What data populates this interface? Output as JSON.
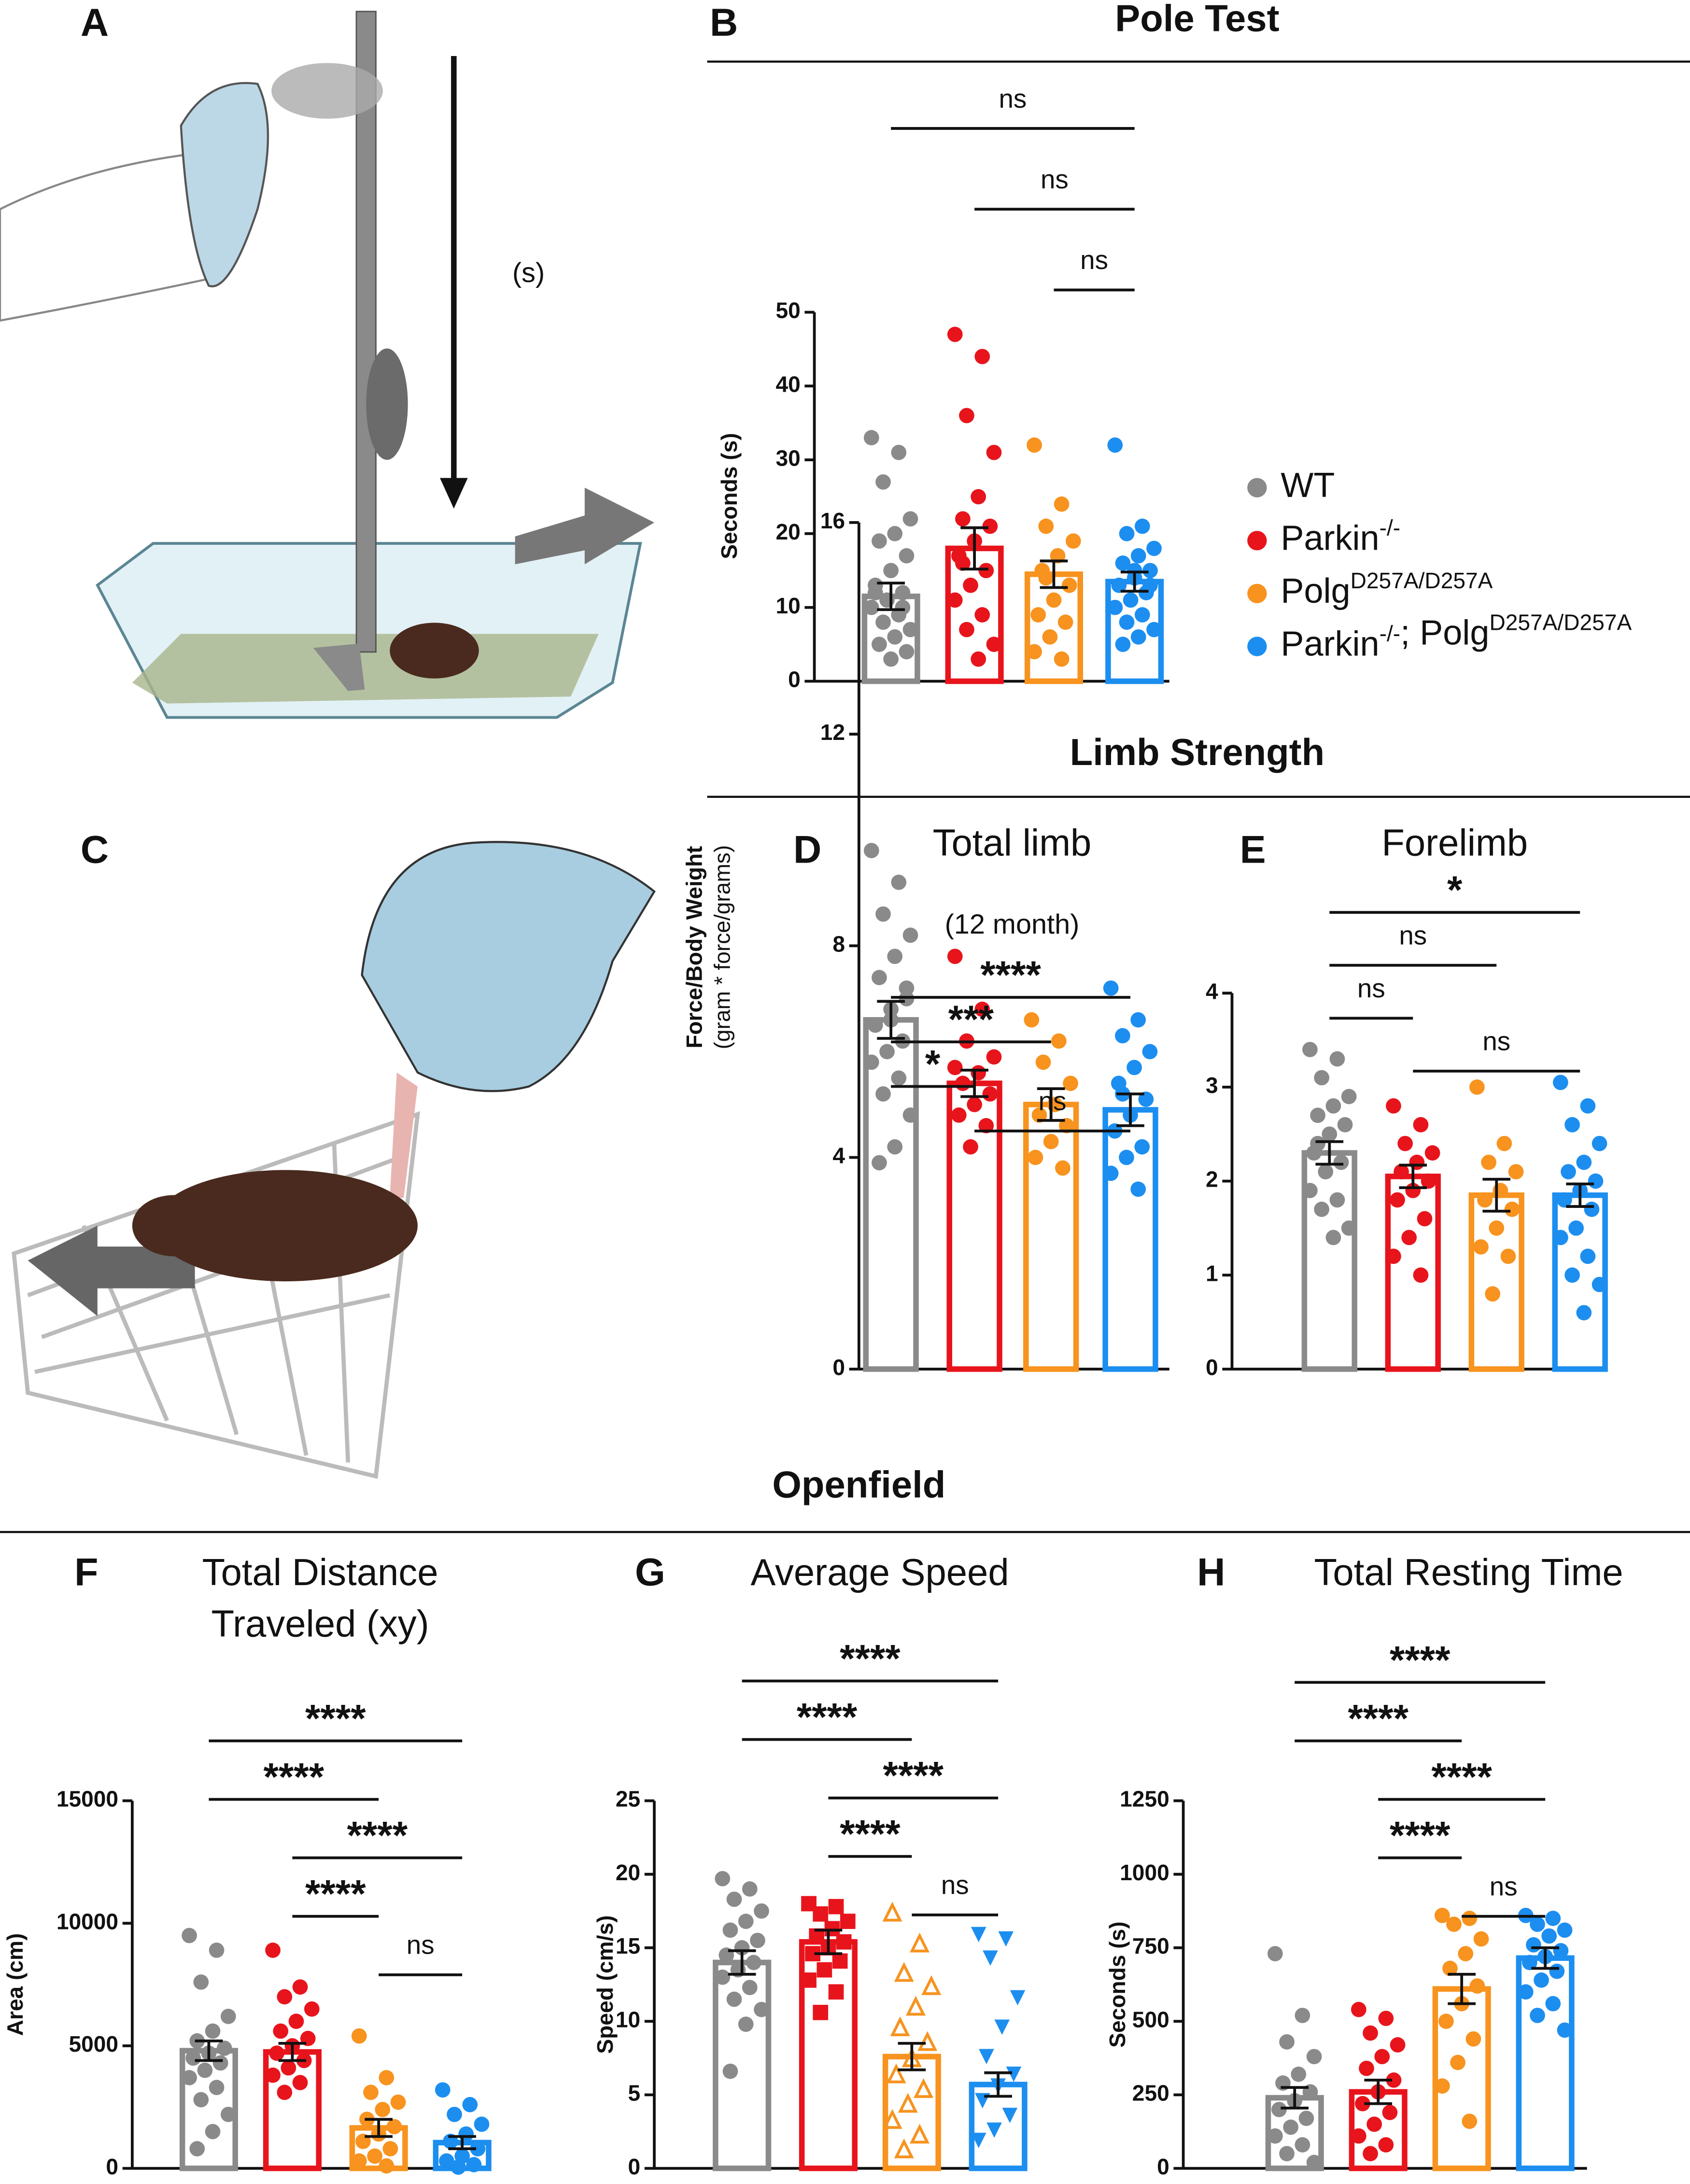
{
  "illustration_a": {
    "letter": "A",
    "label": "(s)"
  },
  "illustration_c": {
    "letter": "C"
  },
  "sections": [
    "Pole Test",
    "Limb Strength",
    "Openfield"
  ],
  "legend": [
    {
      "color": "#8a8a8a",
      "parts": [
        {
          "text": "WT"
        }
      ]
    },
    {
      "color": "#e8141c",
      "parts": [
        {
          "text": "Parkin"
        },
        {
          "sup": "-/-"
        }
      ]
    },
    {
      "color": "#f7931e",
      "parts": [
        {
          "text": "Polg"
        },
        {
          "sup": "D257A/D257A"
        }
      ]
    },
    {
      "color": "#1c8ef0",
      "parts": [
        {
          "text": "Parkin"
        },
        {
          "sup": "-/-"
        },
        {
          "text": "; Polg"
        },
        {
          "sup": "D257A/D257A"
        }
      ]
    }
  ],
  "chart_data": [
    {
      "type": "bar",
      "letter": "B",
      "ylabel": [
        "Seconds (s)"
      ],
      "categories": [
        null,
        null,
        null,
        null
      ],
      "colors": [
        "#8a8a8a",
        "#e8141c",
        "#f7931e",
        "#1c8ef0"
      ],
      "markers": [
        "circle",
        "circle",
        "circle",
        "circle"
      ],
      "values": [
        11.5,
        18,
        14.5,
        13.5
      ],
      "errors": [
        1.8,
        2.8,
        1.8,
        1.3
      ],
      "points": [
        [
          33,
          31,
          27,
          22,
          20,
          19,
          17,
          15,
          13,
          12,
          11,
          10,
          9,
          8,
          7,
          6,
          5,
          4,
          3,
          12,
          10
        ],
        [
          47,
          44,
          36,
          31,
          25,
          22,
          21,
          19,
          17,
          15,
          13,
          11,
          9,
          7,
          5,
          3,
          16
        ],
        [
          32,
          24,
          21,
          19,
          17,
          15,
          13,
          11,
          9,
          8,
          6,
          4,
          3,
          14
        ],
        [
          32,
          21,
          20,
          18,
          17,
          16,
          15,
          14,
          13,
          12,
          11,
          10,
          9,
          8,
          7,
          6,
          5,
          13,
          15
        ]
      ],
      "ylim": [
        0,
        50
      ],
      "yticks": [
        0,
        10,
        20,
        30,
        40,
        50
      ],
      "comparisons": [
        {
          "from": 0,
          "to": 3,
          "label": "ns"
        },
        {
          "from": 1,
          "to": 3,
          "label": "ns"
        },
        {
          "from": 2,
          "to": 3,
          "label": "ns"
        }
      ]
    },
    {
      "type": "bar",
      "letter": "D",
      "title": [
        "Total limb"
      ],
      "subtitle": "(12 month)",
      "ylabel": [
        "Force/Body Weight",
        "(gram * force/grams)"
      ],
      "categories": [
        null,
        null,
        null,
        null
      ],
      "colors": [
        "#8a8a8a",
        "#e8141c",
        "#f7931e",
        "#1c8ef0"
      ],
      "markers": [
        "circle",
        "circle",
        "circle",
        "circle"
      ],
      "values": [
        6.6,
        5.4,
        5.0,
        4.9
      ],
      "errors": [
        0.35,
        0.25,
        0.3,
        0.3
      ],
      "points": [
        [
          9.8,
          9.2,
          8.6,
          8.2,
          7.8,
          7.4,
          7,
          6.8,
          6.5,
          6.2,
          6,
          5.8,
          5.5,
          5.2,
          4.8,
          4.2,
          3.9,
          7.2,
          6.6
        ],
        [
          7.8,
          6.8,
          6.2,
          5.9,
          5.6,
          5.4,
          5.2,
          5,
          4.8,
          4.6,
          4.2,
          5.7
        ],
        [
          6.6,
          6.2,
          5.8,
          5.4,
          5,
          4.8,
          4.6,
          4.3,
          4,
          3.8
        ],
        [
          7.2,
          6.6,
          6.3,
          6,
          5.7,
          5.4,
          5.1,
          4.8,
          4.5,
          4.2,
          4,
          3.7,
          3.4,
          5.2
        ]
      ],
      "ylim": [
        0,
        16
      ],
      "yticks": [
        0,
        4,
        8,
        12,
        16
      ],
      "comparisons": [
        {
          "from": 0,
          "to": 3,
          "label": "****"
        },
        {
          "from": 0,
          "to": 2,
          "label": "***"
        },
        {
          "from": 0,
          "to": 1,
          "label": "*"
        },
        {
          "from": 1,
          "to": 3,
          "label": "ns"
        }
      ]
    },
    {
      "type": "bar",
      "letter": "E",
      "title": [
        "Forelimb"
      ],
      "categories": [
        null,
        null,
        null,
        null
      ],
      "colors": [
        "#8a8a8a",
        "#e8141c",
        "#f7931e",
        "#1c8ef0"
      ],
      "markers": [
        "circle",
        "circle",
        "circle",
        "circle"
      ],
      "values": [
        2.3,
        2.05,
        1.85,
        1.85
      ],
      "errors": [
        0.12,
        0.12,
        0.17,
        0.12
      ],
      "points": [
        [
          3.4,
          3.3,
          3.1,
          2.9,
          2.8,
          2.7,
          2.6,
          2.5,
          2.3,
          2.2,
          2.1,
          1.9,
          1.8,
          1.7,
          1.5,
          1.4,
          2.4
        ],
        [
          2.8,
          2.6,
          2.4,
          2.3,
          2.2,
          2.1,
          2,
          1.9,
          1.8,
          1.6,
          1.4,
          1.2,
          1
        ],
        [
          3,
          2.4,
          2.2,
          2.1,
          1.9,
          1.8,
          1.7,
          1.5,
          1.3,
          1.2,
          0.8
        ],
        [
          3.05,
          2.8,
          2.6,
          2.4,
          2.2,
          2.1,
          2,
          1.9,
          1.8,
          1.7,
          1.5,
          1.4,
          1.2,
          1,
          0.9,
          0.6
        ]
      ],
      "ylim": [
        0,
        4
      ],
      "yticks": [
        0,
        1,
        2,
        3,
        4
      ],
      "comparisons": [
        {
          "from": 0,
          "to": 3,
          "label": "*"
        },
        {
          "from": 0,
          "to": 2,
          "label": "ns"
        },
        {
          "from": 0,
          "to": 1,
          "label": "ns"
        },
        {
          "from": 1,
          "to": 3,
          "label": "ns"
        }
      ]
    },
    {
      "type": "bar",
      "letter": "F",
      "title": [
        "Total Distance",
        "Traveled (xy)"
      ],
      "ylabel": [
        "Area (cm)"
      ],
      "categories": [
        null,
        null,
        null,
        null
      ],
      "colors": [
        "#8a8a8a",
        "#e8141c",
        "#f7931e",
        "#1c8ef0"
      ],
      "markers": [
        "circle",
        "circle",
        "circle",
        "circle"
      ],
      "values": [
        4800,
        4750,
        1650,
        1050
      ],
      "errors": [
        400,
        350,
        350,
        250
      ],
      "points": [
        [
          9500,
          8900,
          7600,
          6200,
          5600,
          5200,
          4900,
          4700,
          4500,
          4300,
          4000,
          3700,
          3300,
          2800,
          2200,
          1500,
          800
        ],
        [
          8900,
          7400,
          7000,
          6500,
          6000,
          5600,
          5300,
          5000,
          4700,
          4400,
          4100,
          3800,
          3500,
          3100
        ],
        [
          5400,
          3700,
          3100,
          2700,
          2400,
          2000,
          1700,
          1400,
          1100,
          800,
          500,
          300,
          100
        ],
        [
          3200,
          2600,
          2200,
          1800,
          1400,
          1100,
          800,
          500,
          300,
          150,
          50
        ]
      ],
      "ylim": [
        0,
        15000
      ],
      "yticks": [
        0,
        5000,
        10000,
        15000
      ],
      "comparisons": [
        {
          "from": 0,
          "to": 3,
          "label": "****"
        },
        {
          "from": 0,
          "to": 2,
          "label": "****"
        },
        {
          "from": 1,
          "to": 3,
          "label": "****"
        },
        {
          "from": 1,
          "to": 2,
          "label": "****"
        },
        {
          "from": 2,
          "to": 3,
          "label": "ns"
        }
      ]
    },
    {
      "type": "bar",
      "letter": "G",
      "title": [
        "Average Speed"
      ],
      "ylabel": [
        "Speed (cm/s)"
      ],
      "categories": [
        null,
        null,
        null,
        null
      ],
      "colors": [
        "#8a8a8a",
        "#e8141c",
        "#f7931e",
        "#1c8ef0"
      ],
      "markers": [
        "circle",
        "square",
        "triangle",
        "triangle-down"
      ],
      "values": [
        14,
        15.4,
        7.6,
        5.7
      ],
      "errors": [
        0.8,
        0.8,
        0.9,
        0.8
      ],
      "points": [
        [
          19.7,
          19,
          18.3,
          17.5,
          16.8,
          16.2,
          15.5,
          15,
          14.5,
          14,
          13.5,
          13,
          12.3,
          11.5,
          10.8,
          9.8,
          6.6
        ],
        [
          18,
          17.8,
          17.3,
          16.8,
          16.3,
          15.8,
          15.4,
          15,
          14.6,
          14.1,
          13.5,
          12.8,
          12,
          10.6
        ],
        [
          17.4,
          15.3,
          13.3,
          12.4,
          11,
          9.6,
          8.6,
          7.5,
          6.4,
          5.4,
          4.4,
          3.3,
          2.3,
          1.3
        ],
        [
          15.9,
          15.6,
          14.3,
          11.6,
          9.6,
          7.6,
          6.4,
          5.6,
          4.6,
          3.6,
          2.6,
          1.9
        ]
      ],
      "ylim": [
        0,
        25
      ],
      "yticks": [
        0,
        5,
        10,
        15,
        20,
        25
      ],
      "comparisons": [
        {
          "from": 0,
          "to": 3,
          "label": "****"
        },
        {
          "from": 0,
          "to": 2,
          "label": "****"
        },
        {
          "from": 1,
          "to": 3,
          "label": "****"
        },
        {
          "from": 1,
          "to": 2,
          "label": "****"
        },
        {
          "from": 2,
          "to": 3,
          "label": "ns"
        }
      ]
    },
    {
      "type": "bar",
      "letter": "H",
      "title": [
        "Total Resting Time"
      ],
      "ylabel": [
        "Seconds (s)"
      ],
      "categories": [
        null,
        null,
        null,
        null
      ],
      "colors": [
        "#8a8a8a",
        "#e8141c",
        "#f7931e",
        "#1c8ef0"
      ],
      "markers": [
        "circle",
        "circle",
        "circle",
        "circle"
      ],
      "values": [
        240,
        260,
        610,
        715
      ],
      "errors": [
        35,
        40,
        50,
        35
      ],
      "points": [
        [
          730,
          520,
          430,
          380,
          320,
          290,
          260,
          230,
          200,
          170,
          140,
          110,
          80,
          50,
          20
        ],
        [
          540,
          510,
          460,
          420,
          380,
          340,
          300,
          260,
          220,
          190,
          150,
          110,
          80,
          50
        ],
        [
          860,
          850,
          830,
          780,
          730,
          680,
          620,
          560,
          500,
          440,
          360,
          280,
          160
        ],
        [
          860,
          850,
          830,
          810,
          790,
          760,
          740,
          720,
          700,
          670,
          640,
          600,
          560,
          520,
          470
        ]
      ],
      "ylim": [
        0,
        1250
      ],
      "yticks": [
        0,
        250,
        500,
        750,
        1000,
        1250
      ],
      "comparisons": [
        {
          "from": 0,
          "to": 3,
          "label": "****"
        },
        {
          "from": 0,
          "to": 2,
          "label": "****"
        },
        {
          "from": 1,
          "to": 3,
          "label": "****"
        },
        {
          "from": 1,
          "to": 2,
          "label": "****"
        },
        {
          "from": 2,
          "to": 3,
          "label": "ns"
        }
      ]
    }
  ]
}
